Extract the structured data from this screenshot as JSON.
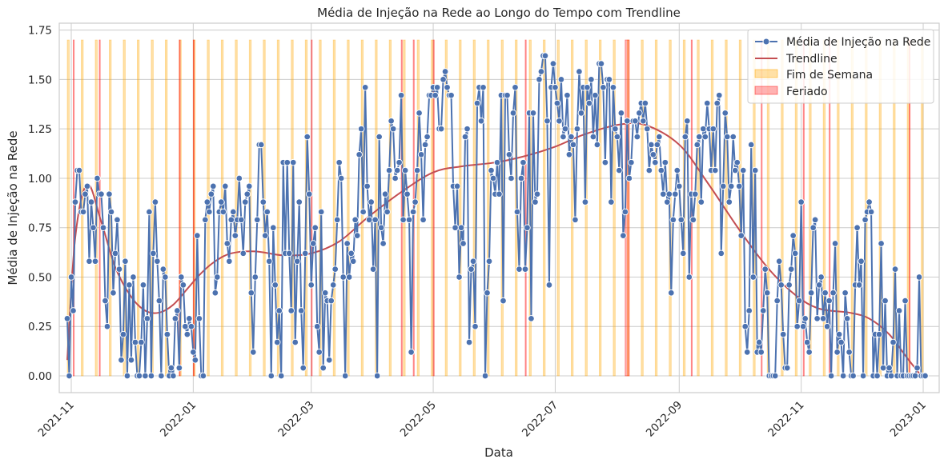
{
  "chart_data": {
    "type": "line",
    "title": "Média de Injeção na Rede ao Longo do Tempo com Trendline",
    "xlabel": "Data",
    "ylabel": "Média de Injeção na Rede",
    "xlim": [
      "2021-10-26",
      "2023-01-09"
    ],
    "ylim": [
      -0.085,
      1.785
    ],
    "x_ticks": [
      "2021-11",
      "2022-01",
      "2022-03",
      "2022-05",
      "2022-07",
      "2022-09",
      "2022-11",
      "2023-01"
    ],
    "y_ticks": [
      "0.00",
      "0.25",
      "0.50",
      "0.75",
      "1.00",
      "1.25",
      "1.50",
      "1.75"
    ],
    "grid": true,
    "legend_position": "top-right",
    "colors": {
      "line": "#4c72b0",
      "trend": "#c44e52",
      "weekend": "#ffa500",
      "holiday": "#ff0000"
    },
    "start_date": "2021-10-30",
    "end_date": "2022-12-31",
    "series": [
      {
        "name": "Média de Injeção na Rede",
        "color": "#4c72b0",
        "y": [
          0.29,
          0.0,
          0.5,
          0.33,
          0.88,
          1.04,
          1.04,
          0.83,
          0.83,
          0.92,
          0.96,
          0.58,
          0.88,
          0.75,
          0.58,
          1.0,
          0.92,
          0.92,
          0.75,
          0.38,
          0.25,
          0.92,
          0.83,
          0.42,
          0.62,
          0.79,
          0.54,
          0.08,
          0.21,
          0.58,
          0.0,
          0.46,
          0.08,
          0.5,
          0.17,
          0.0,
          0.0,
          0.17,
          0.46,
          0.0,
          0.29,
          0.83,
          0.0,
          0.62,
          0.88,
          0.58,
          0.38,
          0.0,
          0.54,
          0.5,
          0.21,
          0.0,
          0.04,
          0.0,
          0.29,
          0.33,
          0.04,
          0.5,
          0.46,
          0.25,
          0.21,
          0.29,
          0.25,
          0.12,
          0.08,
          0.71,
          0.29,
          0.0,
          0.0,
          0.79,
          0.88,
          0.83,
          0.92,
          0.96,
          0.42,
          0.5,
          0.83,
          0.88,
          0.83,
          0.96,
          0.67,
          0.58,
          0.79,
          0.83,
          0.71,
          0.79,
          1.0,
          0.79,
          0.62,
          0.88,
          0.92,
          0.96,
          0.42,
          0.12,
          0.5,
          0.79,
          1.17,
          1.17,
          0.88,
          0.71,
          0.83,
          0.58,
          0.0,
          0.75,
          0.46,
          0.17,
          0.33,
          0.0,
          1.08,
          0.62,
          1.08,
          0.62,
          0.33,
          1.08,
          0.17,
          0.58,
          0.88,
          0.33,
          0.04,
          0.62,
          1.21,
          0.92,
          0.46,
          0.67,
          0.75,
          0.25,
          0.12,
          0.83,
          0.04,
          0.42,
          0.38,
          0.08,
          0.38,
          0.46,
          0.54,
          0.79,
          1.08,
          1.0,
          0.5,
          0.0,
          0.67,
          0.5,
          0.62,
          0.58,
          0.79,
          0.71,
          1.12,
          1.25,
          0.83,
          1.46,
          0.96,
          0.79,
          0.88,
          0.54,
          0.79,
          0.0,
          1.21,
          0.75,
          0.67,
          0.92,
          0.83,
          1.04,
          1.29,
          1.25,
          1.0,
          1.04,
          1.08,
          1.42,
          0.79,
          1.04,
          0.92,
          0.79,
          0.12,
          0.83,
          0.88,
          1.04,
          1.33,
          1.12,
          0.79,
          1.17,
          1.21,
          1.42,
          1.42,
          1.46,
          1.42,
          1.46,
          1.25,
          1.25,
          1.5,
          1.54,
          1.46,
          1.42,
          1.42,
          0.96,
          0.75,
          0.96,
          0.5,
          0.75,
          0.67,
          1.21,
          1.25,
          0.17,
          0.54,
          0.58,
          0.25,
          1.38,
          1.46,
          1.29,
          1.46,
          0.0,
          0.42,
          0.58,
          1.04,
          1.0,
          0.92,
          1.08,
          0.92,
          1.42,
          0.38,
          1.42,
          1.42,
          1.12,
          1.0,
          1.33,
          1.46,
          0.83,
          0.54,
          1.0,
          1.08,
          0.54,
          0.75,
          1.33,
          0.29,
          1.33,
          0.88,
          0.92,
          1.5,
          1.54,
          1.62,
          1.62,
          1.29,
          0.46,
          1.46,
          1.58,
          1.46,
          1.38,
          1.29,
          1.5,
          1.21,
          1.25,
          1.42,
          1.12,
          1.21,
          1.17,
          0.79,
          1.25,
          1.54,
          1.33,
          1.46,
          0.88,
          1.46,
          1.38,
          1.5,
          1.21,
          1.42,
          1.17,
          1.58,
          1.58,
          1.46,
          1.08,
          1.5,
          1.5,
          0.88,
          1.46,
          1.25,
          1.21,
          1.04,
          1.33,
          0.71,
          0.83,
          1.29,
          1.0,
          1.08,
          1.29,
          1.29,
          1.21,
          1.33,
          1.38,
          1.29,
          1.38,
          1.25,
          1.04,
          1.17,
          1.12,
          1.08,
          1.17,
          1.21,
          1.04,
          0.92,
          1.08,
          0.88,
          0.92,
          0.42,
          0.79,
          0.92,
          1.04,
          0.96,
          0.79,
          0.62,
          1.21,
          1.29,
          0.5,
          0.92,
          0.79,
          0.92,
          1.17,
          1.21,
          0.88,
          1.25,
          1.21,
          1.38,
          1.25,
          1.04,
          1.25,
          1.04,
          1.38,
          1.42,
          0.62,
          0.96,
          1.33,
          1.21,
          0.88,
          0.96,
          1.21,
          1.04,
          1.08,
          0.96,
          0.71,
          1.04,
          0.25,
          0.12,
          0.33,
          1.17,
          0.5,
          1.04,
          0.12,
          0.17,
          0.12,
          0.33,
          0.54,
          0.42,
          0.0,
          0.0,
          0.0,
          0.0,
          0.38,
          0.58,
          0.46,
          0.21,
          0.04,
          0.04,
          0.46,
          0.54,
          0.71,
          0.62,
          0.25,
          0.38,
          0.88,
          0.25,
          0.29,
          0.17,
          0.12,
          0.42,
          0.75,
          0.79,
          0.29,
          0.46,
          0.5,
          0.29,
          0.42,
          0.25,
          0.38,
          0.0,
          0.42,
          0.67,
          0.12,
          0.21,
          0.17,
          0.0,
          0.42,
          0.29,
          0.12,
          0.0,
          0.0,
          0.46,
          0.75,
          0.46,
          0.58,
          0.0,
          0.79,
          0.83,
          0.88,
          0.83,
          0.0,
          0.21,
          0.0,
          0.21,
          0.67,
          0.04,
          0.38,
          0.0,
          0.04,
          0.0,
          0.17,
          0.54,
          0.0,
          0.33,
          0.0,
          0.0,
          0.38,
          0.0,
          0.0,
          0.0,
          0.0,
          0.0,
          0.04,
          0.5,
          0.0,
          0.0,
          0.0
        ]
      },
      {
        "name": "Trendline",
        "color": "#c44e52",
        "x": [
          "2021-10-30",
          "2021-11-03",
          "2021-11-09",
          "2021-11-16",
          "2021-11-23",
          "2021-12-01",
          "2021-12-08",
          "2021-12-15",
          "2021-12-22",
          "2021-12-29",
          "2022-01-05",
          "2022-01-12",
          "2022-01-20",
          "2022-02-01",
          "2022-02-15",
          "2022-03-01",
          "2022-03-15",
          "2022-03-29",
          "2022-04-15",
          "2022-05-01",
          "2022-05-15",
          "2022-06-01",
          "2022-06-15",
          "2022-07-01",
          "2022-07-15",
          "2022-08-01",
          "2022-08-15",
          "2022-09-01",
          "2022-09-15",
          "2022-10-01",
          "2022-10-15",
          "2022-10-29",
          "2022-11-10",
          "2022-11-25",
          "2022-12-05",
          "2022-12-15",
          "2022-12-24",
          "2022-12-31"
        ],
        "y": [
          0.08,
          0.7,
          0.97,
          0.78,
          0.55,
          0.4,
          0.33,
          0.32,
          0.36,
          0.44,
          0.52,
          0.58,
          0.62,
          0.63,
          0.61,
          0.62,
          0.68,
          0.8,
          0.93,
          1.03,
          1.06,
          1.08,
          1.11,
          1.16,
          1.22,
          1.27,
          1.27,
          1.17,
          0.98,
          0.74,
          0.55,
          0.41,
          0.34,
          0.32,
          0.29,
          0.21,
          0.09,
          0.0
        ]
      }
    ],
    "bands": [
      {
        "name": "Fim de Semana",
        "color": "#ffa500",
        "top": 1.7,
        "ranges": [
          [
            "2021-10-30",
            "2021-10-31"
          ],
          [
            "2021-11-06",
            "2021-11-07"
          ],
          [
            "2021-11-13",
            "2021-11-14"
          ],
          [
            "2021-11-20",
            "2021-11-21"
          ],
          [
            "2021-11-27",
            "2021-11-28"
          ],
          [
            "2021-12-04",
            "2021-12-05"
          ],
          [
            "2021-12-11",
            "2021-12-12"
          ],
          [
            "2021-12-18",
            "2021-12-19"
          ],
          [
            "2021-12-25",
            "2021-12-26"
          ],
          [
            "2022-01-01",
            "2022-01-02"
          ],
          [
            "2022-01-08",
            "2022-01-09"
          ],
          [
            "2022-01-15",
            "2022-01-16"
          ],
          [
            "2022-01-22",
            "2022-01-23"
          ],
          [
            "2022-01-29",
            "2022-01-30"
          ],
          [
            "2022-02-05",
            "2022-02-06"
          ],
          [
            "2022-02-12",
            "2022-02-13"
          ],
          [
            "2022-02-19",
            "2022-02-20"
          ],
          [
            "2022-02-26",
            "2022-02-27"
          ],
          [
            "2022-03-05",
            "2022-03-06"
          ],
          [
            "2022-03-12",
            "2022-03-13"
          ],
          [
            "2022-03-19",
            "2022-03-20"
          ],
          [
            "2022-03-26",
            "2022-03-27"
          ],
          [
            "2022-04-02",
            "2022-04-03"
          ],
          [
            "2022-04-09",
            "2022-04-10"
          ],
          [
            "2022-04-16",
            "2022-04-17"
          ],
          [
            "2022-04-23",
            "2022-04-24"
          ],
          [
            "2022-04-30",
            "2022-05-01"
          ],
          [
            "2022-05-07",
            "2022-05-08"
          ],
          [
            "2022-05-14",
            "2022-05-15"
          ],
          [
            "2022-05-21",
            "2022-05-22"
          ],
          [
            "2022-05-28",
            "2022-05-29"
          ],
          [
            "2022-06-04",
            "2022-06-05"
          ],
          [
            "2022-06-11",
            "2022-06-12"
          ],
          [
            "2022-06-18",
            "2022-06-19"
          ],
          [
            "2022-06-25",
            "2022-06-26"
          ],
          [
            "2022-07-02",
            "2022-07-03"
          ],
          [
            "2022-07-09",
            "2022-07-10"
          ],
          [
            "2022-07-16",
            "2022-07-17"
          ],
          [
            "2022-07-23",
            "2022-07-24"
          ],
          [
            "2022-07-30",
            "2022-07-31"
          ],
          [
            "2022-08-06",
            "2022-08-07"
          ],
          [
            "2022-08-13",
            "2022-08-14"
          ],
          [
            "2022-08-20",
            "2022-08-21"
          ],
          [
            "2022-08-27",
            "2022-08-28"
          ],
          [
            "2022-09-03",
            "2022-09-04"
          ],
          [
            "2022-09-10",
            "2022-09-11"
          ],
          [
            "2022-09-17",
            "2022-09-18"
          ],
          [
            "2022-09-24",
            "2022-09-25"
          ],
          [
            "2022-10-01",
            "2022-10-02"
          ],
          [
            "2022-10-08",
            "2022-10-09"
          ],
          [
            "2022-10-15",
            "2022-10-16"
          ],
          [
            "2022-10-22",
            "2022-10-23"
          ],
          [
            "2022-10-29",
            "2022-10-30"
          ],
          [
            "2022-11-05",
            "2022-11-06"
          ],
          [
            "2022-11-12",
            "2022-11-13"
          ],
          [
            "2022-11-19",
            "2022-11-20"
          ],
          [
            "2022-11-26",
            "2022-11-27"
          ],
          [
            "2022-12-03",
            "2022-12-04"
          ],
          [
            "2022-12-10",
            "2022-12-11"
          ],
          [
            "2022-12-17",
            "2022-12-18"
          ],
          [
            "2022-12-24",
            "2022-12-25"
          ],
          [
            "2022-12-31",
            "2023-01-01"
          ]
        ]
      },
      {
        "name": "Feriado",
        "color": "#ff0000",
        "top": 1.7,
        "ranges": [
          [
            "2021-11-02",
            "2021-11-02"
          ],
          [
            "2021-11-15",
            "2021-11-15"
          ],
          [
            "2021-12-25",
            "2021-12-25"
          ],
          [
            "2022-01-01",
            "2022-01-01"
          ],
          [
            "2022-03-01",
            "2022-03-01"
          ],
          [
            "2022-04-15",
            "2022-04-15"
          ],
          [
            "2022-04-21",
            "2022-04-21"
          ],
          [
            "2022-05-01",
            "2022-05-01"
          ],
          [
            "2022-06-16",
            "2022-06-16"
          ],
          [
            "2022-08-05",
            "2022-08-07"
          ],
          [
            "2022-09-07",
            "2022-09-07"
          ],
          [
            "2022-10-12",
            "2022-10-12"
          ],
          [
            "2022-11-02",
            "2022-11-02"
          ],
          [
            "2022-11-15",
            "2022-11-15"
          ],
          [
            "2022-12-25",
            "2022-12-25"
          ]
        ]
      }
    ]
  }
}
